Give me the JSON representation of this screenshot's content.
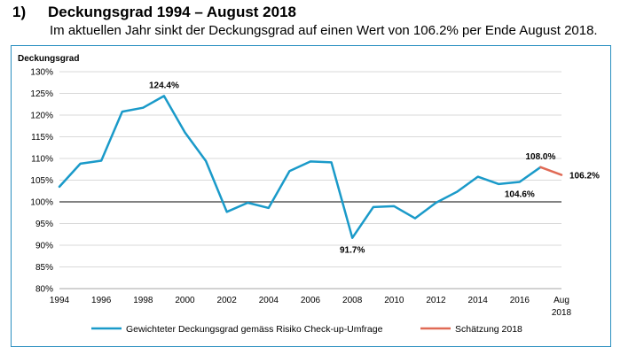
{
  "heading": {
    "number": "1)",
    "title": "Deckungsgrad 1994 – August 2018",
    "subtitle": "Im aktuellen Jahr sinkt der Deckungsgrad auf einen Wert von 106.2% per Ende August 2018."
  },
  "colors": {
    "main_series": "#1a9ac9",
    "estimate_series": "#e06a55",
    "grid": "#d9d9d9",
    "reference_line": "#595959",
    "frame": "#2a8fc0"
  },
  "chart_data": {
    "type": "line",
    "ylabel": "Deckungsgrad",
    "ylim": [
      80,
      130
    ],
    "y_ticks": [
      80,
      85,
      90,
      95,
      100,
      105,
      110,
      115,
      120,
      125,
      130
    ],
    "y_tick_labels": [
      "80%",
      "85%",
      "90%",
      "95%",
      "100%",
      "105%",
      "110%",
      "115%",
      "120%",
      "125%",
      "130%"
    ],
    "x_positions": [
      1994,
      1995,
      1996,
      1997,
      1998,
      1999,
      2000,
      2001,
      2002,
      2003,
      2004,
      2005,
      2006,
      2007,
      2008,
      2009,
      2010,
      2011,
      2012,
      2013,
      2014,
      2015,
      2016,
      2017,
      2018
    ],
    "x_tick_positions": [
      1994,
      1996,
      1998,
      2000,
      2002,
      2004,
      2006,
      2008,
      2010,
      2012,
      2014,
      2016,
      2018
    ],
    "x_tick_labels": [
      "1994",
      "1996",
      "1998",
      "2000",
      "2002",
      "2004",
      "2006",
      "2008",
      "2010",
      "2012",
      "2014",
      "2016",
      "Aug"
    ],
    "x_tick_sublabels": [
      "",
      "",
      "",
      "",
      "",
      "",
      "",
      "",
      "",
      "",
      "",
      "",
      "2018"
    ],
    "reference_line": 100,
    "grid": true,
    "series": [
      {
        "name": "Gewichteter Deckungsgrad gemäss Risiko Check-up-Umfrage",
        "x": [
          1994,
          1995,
          1996,
          1997,
          1998,
          1999,
          2000,
          2001,
          2002,
          2003,
          2004,
          2005,
          2006,
          2007,
          2008,
          2009,
          2010,
          2011,
          2012,
          2013,
          2014,
          2015,
          2016,
          2017
        ],
        "values": [
          103.5,
          108.8,
          109.5,
          120.8,
          121.7,
          124.4,
          116.0,
          109.4,
          97.7,
          99.8,
          98.6,
          107.1,
          109.3,
          109.1,
          91.7,
          98.8,
          99.0,
          96.2,
          99.8,
          102.3,
          105.8,
          104.1,
          104.6,
          108.0
        ]
      },
      {
        "name": "Schätzung 2018",
        "x": [
          2017,
          2018
        ],
        "values": [
          108.0,
          106.2
        ]
      }
    ],
    "annotations": [
      {
        "text": "124.4%",
        "x": 1999,
        "y": 124.4,
        "position": "above"
      },
      {
        "text": "91.7%",
        "x": 2008,
        "y": 91.7,
        "position": "below"
      },
      {
        "text": "108.0%",
        "x": 2017,
        "y": 108.0,
        "position": "above"
      },
      {
        "text": "104.6%",
        "x": 2016,
        "y": 104.6,
        "position": "below"
      },
      {
        "text": "106.2%",
        "x": 2018,
        "y": 106.2,
        "position": "right"
      }
    ],
    "legend": [
      "Gewichteter Deckungsgrad gemäss Risiko Check-up-Umfrage",
      "Schätzung 2018"
    ]
  }
}
